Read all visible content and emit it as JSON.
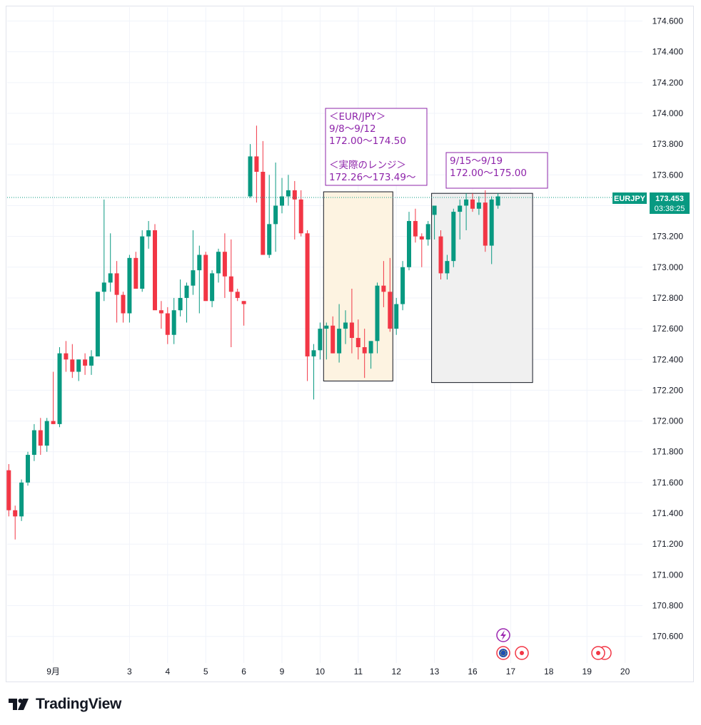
{
  "brand": {
    "name": "TradingView",
    "icon": "tradingview-logo-icon"
  },
  "colors": {
    "up": "#089981",
    "down": "#f23645",
    "annotation": "#8e24aa",
    "price_tag": "#089981",
    "grid": "#f0f3fa"
  },
  "chart_data": {
    "type": "candlestick",
    "symbol": "EURJPY",
    "last_price": "173.453",
    "countdown": "03:38:25",
    "ylim": [
      170.45,
      174.72
    ],
    "yticks": [
      "174.600",
      "174.400",
      "174.200",
      "174.000",
      "173.800",
      "173.600",
      "173.400",
      "173.200",
      "173.000",
      "172.800",
      "172.600",
      "172.400",
      "172.200",
      "172.000",
      "171.800",
      "171.600",
      "171.400",
      "171.200",
      "171.000",
      "170.800",
      "170.600"
    ],
    "ytick_values": [
      174.6,
      174.4,
      174.2,
      174.0,
      173.8,
      173.6,
      173.4,
      173.2,
      173.0,
      172.8,
      172.6,
      172.4,
      172.2,
      172.0,
      171.8,
      171.6,
      171.4,
      171.2,
      171.0,
      170.8,
      170.6
    ],
    "xticks": [
      {
        "label": "9月",
        "bar": 7
      },
      {
        "label": "3",
        "bar": 19
      },
      {
        "label": "4",
        "bar": 25
      },
      {
        "label": "5",
        "bar": 31
      },
      {
        "label": "6",
        "bar": 37
      },
      {
        "label": "9",
        "bar": 43
      },
      {
        "label": "10",
        "bar": 49
      },
      {
        "label": "11",
        "bar": 55
      },
      {
        "label": "12",
        "bar": 61
      },
      {
        "label": "13",
        "bar": 67
      },
      {
        "label": "16",
        "bar": 73
      },
      {
        "label": "17",
        "bar": 79
      },
      {
        "label": "18",
        "bar": 85
      },
      {
        "label": "19",
        "bar": 91
      },
      {
        "label": "20",
        "bar": 97
      }
    ],
    "candles": [
      [
        171.68,
        171.72,
        171.38,
        171.42
      ],
      [
        171.42,
        171.45,
        171.23,
        171.38
      ],
      [
        171.38,
        171.62,
        171.35,
        171.6
      ],
      [
        171.6,
        171.8,
        171.58,
        171.78
      ],
      [
        171.78,
        171.98,
        171.74,
        171.94
      ],
      [
        171.94,
        172.02,
        171.78,
        171.84
      ],
      [
        171.84,
        172.02,
        171.8,
        172.0
      ],
      [
        172.0,
        172.32,
        171.98,
        171.98
      ],
      [
        171.98,
        172.48,
        171.96,
        172.44
      ],
      [
        172.44,
        172.52,
        172.32,
        172.4
      ],
      [
        172.4,
        172.5,
        172.28,
        172.32
      ],
      [
        172.32,
        172.4,
        172.26,
        172.4
      ],
      [
        172.4,
        172.44,
        172.3,
        172.36
      ],
      [
        172.36,
        172.46,
        172.3,
        172.42
      ],
      [
        172.42,
        172.84,
        172.42,
        172.84
      ],
      [
        172.84,
        173.44,
        172.78,
        172.9
      ],
      [
        172.9,
        173.22,
        172.84,
        172.96
      ],
      [
        172.96,
        173.04,
        172.64,
        172.82
      ],
      [
        172.82,
        172.84,
        172.64,
        172.7
      ],
      [
        172.7,
        173.08,
        172.64,
        173.06
      ],
      [
        173.06,
        173.1,
        172.88,
        172.86
      ],
      [
        172.86,
        173.24,
        172.84,
        173.2
      ],
      [
        173.2,
        173.3,
        173.12,
        173.24
      ],
      [
        173.24,
        173.28,
        172.74,
        172.72
      ],
      [
        172.72,
        172.78,
        172.6,
        172.7
      ],
      [
        172.7,
        172.74,
        172.5,
        172.56
      ],
      [
        172.56,
        172.8,
        172.5,
        172.72
      ],
      [
        172.72,
        172.92,
        172.68,
        172.8
      ],
      [
        172.8,
        172.9,
        172.64,
        172.88
      ],
      [
        172.88,
        173.24,
        172.82,
        172.98
      ],
      [
        172.98,
        173.14,
        172.7,
        173.08
      ],
      [
        173.08,
        173.1,
        172.82,
        172.78
      ],
      [
        172.78,
        172.98,
        172.74,
        172.96
      ],
      [
        172.96,
        173.12,
        172.9,
        173.1
      ],
      [
        173.1,
        173.22,
        172.8,
        172.94
      ],
      [
        172.94,
        173.18,
        172.48,
        172.84
      ],
      [
        172.84,
        172.86,
        172.78,
        172.8
      ],
      [
        172.78,
        172.78,
        172.62,
        172.76
      ],
      [
        173.46,
        173.8,
        173.45,
        173.72
      ],
      [
        173.72,
        173.92,
        173.42,
        173.62
      ],
      [
        173.62,
        173.82,
        173.08,
        173.08
      ],
      [
        173.08,
        173.6,
        173.06,
        173.28
      ],
      [
        173.28,
        173.68,
        173.1,
        173.4
      ],
      [
        173.4,
        173.58,
        173.35,
        173.46
      ],
      [
        173.46,
        173.6,
        173.4,
        173.5
      ],
      [
        173.5,
        173.56,
        173.18,
        173.44
      ],
      [
        173.44,
        173.5,
        173.2,
        173.22
      ],
      [
        173.22,
        173.24,
        172.26,
        172.42
      ],
      [
        172.42,
        172.5,
        172.14,
        172.46
      ],
      [
        172.46,
        172.64,
        172.4,
        172.6
      ],
      [
        172.6,
        172.64,
        172.4,
        172.62
      ],
      [
        172.62,
        172.68,
        172.44,
        172.44
      ],
      [
        172.44,
        172.76,
        172.38,
        172.6
      ],
      [
        172.6,
        172.72,
        172.5,
        172.64
      ],
      [
        172.64,
        172.86,
        172.44,
        172.54
      ],
      [
        172.54,
        172.66,
        172.4,
        172.48
      ],
      [
        172.48,
        172.6,
        172.28,
        172.44
      ],
      [
        172.44,
        172.52,
        172.34,
        172.52
      ],
      [
        172.52,
        172.9,
        172.44,
        172.88
      ],
      [
        172.88,
        173.04,
        172.74,
        172.84
      ],
      [
        172.84,
        173.06,
        172.58,
        172.6
      ],
      [
        172.6,
        172.8,
        172.56,
        172.76
      ],
      [
        172.76,
        173.04,
        172.72,
        173.0
      ],
      [
        173.0,
        173.36,
        172.98,
        173.3
      ],
      [
        173.3,
        173.38,
        173.16,
        173.2
      ],
      [
        173.2,
        173.22,
        173.0,
        173.18
      ],
      [
        173.18,
        173.3,
        173.14,
        173.28
      ],
      [
        173.34,
        173.38,
        173.18,
        173.4
      ],
      [
        173.2,
        173.24,
        172.92,
        172.96
      ],
      [
        172.96,
        173.08,
        172.92,
        173.04
      ],
      [
        173.04,
        173.38,
        173.0,
        173.36
      ],
      [
        173.36,
        173.44,
        173.18,
        173.4
      ],
      [
        173.4,
        173.48,
        173.24,
        173.44
      ],
      [
        173.44,
        173.48,
        173.36,
        173.38
      ],
      [
        173.38,
        173.46,
        173.34,
        173.42
      ],
      [
        173.42,
        173.5,
        173.1,
        173.14
      ],
      [
        173.14,
        173.46,
        173.02,
        173.44
      ],
      [
        173.4,
        173.48,
        173.38,
        173.46
      ]
    ],
    "annotations": [
      {
        "lines": [
          "＜EUR/JPY＞",
          "9/8〜9/12",
          "172.00〜174.50",
          "",
          "＜実際のレンジ＞",
          "172.26〜173.49〜"
        ]
      },
      {
        "lines": [
          "9/15〜9/19",
          "172.00〜175.00"
        ]
      }
    ],
    "ranges": [
      {
        "label": "9/8〜9/12 実際のレンジ",
        "from_bar": 50,
        "to_bar": 60,
        "low": 172.26,
        "high": 173.49,
        "color": "#fdf3e1"
      },
      {
        "label": "9/15〜9/19",
        "from_bar": 67,
        "to_bar": 82,
        "low": 172.25,
        "high": 173.48,
        "color": "#f0f0f0"
      }
    ]
  }
}
